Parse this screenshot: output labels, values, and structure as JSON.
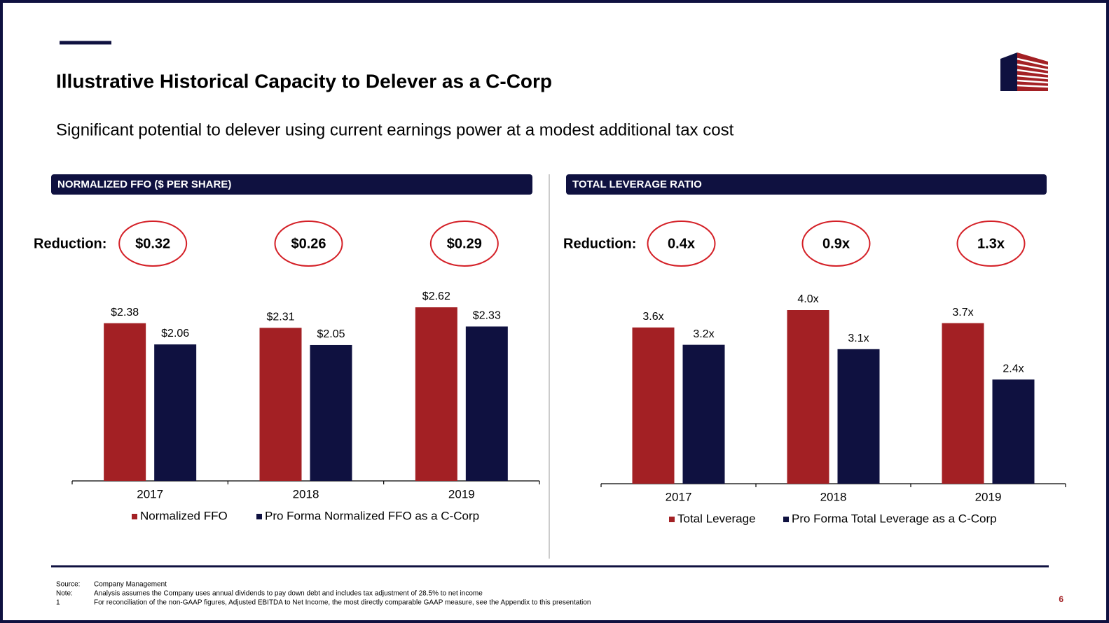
{
  "header": {
    "title": "Illustrative Historical Capacity to Delever as a C-Corp",
    "subtitle": "Significant potential to delever using current earnings power at a modest additional tax cost"
  },
  "chart_data": [
    {
      "type": "bar",
      "title": "NORMALIZED FFO ($ PER SHARE)",
      "reduction_label": "Reduction:",
      "reductions": [
        "$0.32",
        "$0.26",
        "$0.29"
      ],
      "categories": [
        "2017",
        "2018",
        "2019"
      ],
      "series": [
        {
          "name": "Normalized FFO",
          "color": "#A32024",
          "values": [
            2.38,
            2.31,
            2.62
          ],
          "value_labels": [
            "$2.38",
            "$2.31",
            "$2.62"
          ]
        },
        {
          "name": "Pro Forma Normalized FFO as a C-Corp",
          "color": "#0F1140",
          "values": [
            2.06,
            2.05,
            2.33
          ],
          "value_labels": [
            "$2.06",
            "$2.05",
            "$2.33"
          ]
        }
      ]
    },
    {
      "type": "bar",
      "title": "TOTAL LEVERAGE RATIO",
      "reduction_label": "Reduction:",
      "reductions": [
        "0.4x",
        "0.9x",
        "1.3x"
      ],
      "categories": [
        "2017",
        "2018",
        "2019"
      ],
      "series": [
        {
          "name": "Total Leverage",
          "color": "#A32024",
          "values": [
            3.6,
            4.0,
            3.7
          ],
          "value_labels": [
            "3.6x",
            "4.0x",
            "3.7x"
          ]
        },
        {
          "name": "Pro Forma Total Leverage as a C-Corp",
          "color": "#0F1140",
          "values": [
            3.2,
            3.1,
            2.4
          ],
          "value_labels": [
            "3.2x",
            "3.1x",
            "2.4x"
          ]
        }
      ]
    }
  ],
  "footnotes": [
    {
      "key": "Source:",
      "text": "Company Management"
    },
    {
      "key": "Note:",
      "text": "Analysis assumes the Company uses annual dividends to pay down debt and includes tax adjustment of 28.5% to net income"
    },
    {
      "key": "1",
      "text": "For reconciliation of the non-GAAP figures, Adjusted EBITDA to Net Income, the most directly comparable GAAP measure, see the Appendix to this presentation"
    }
  ],
  "page_number": "6"
}
